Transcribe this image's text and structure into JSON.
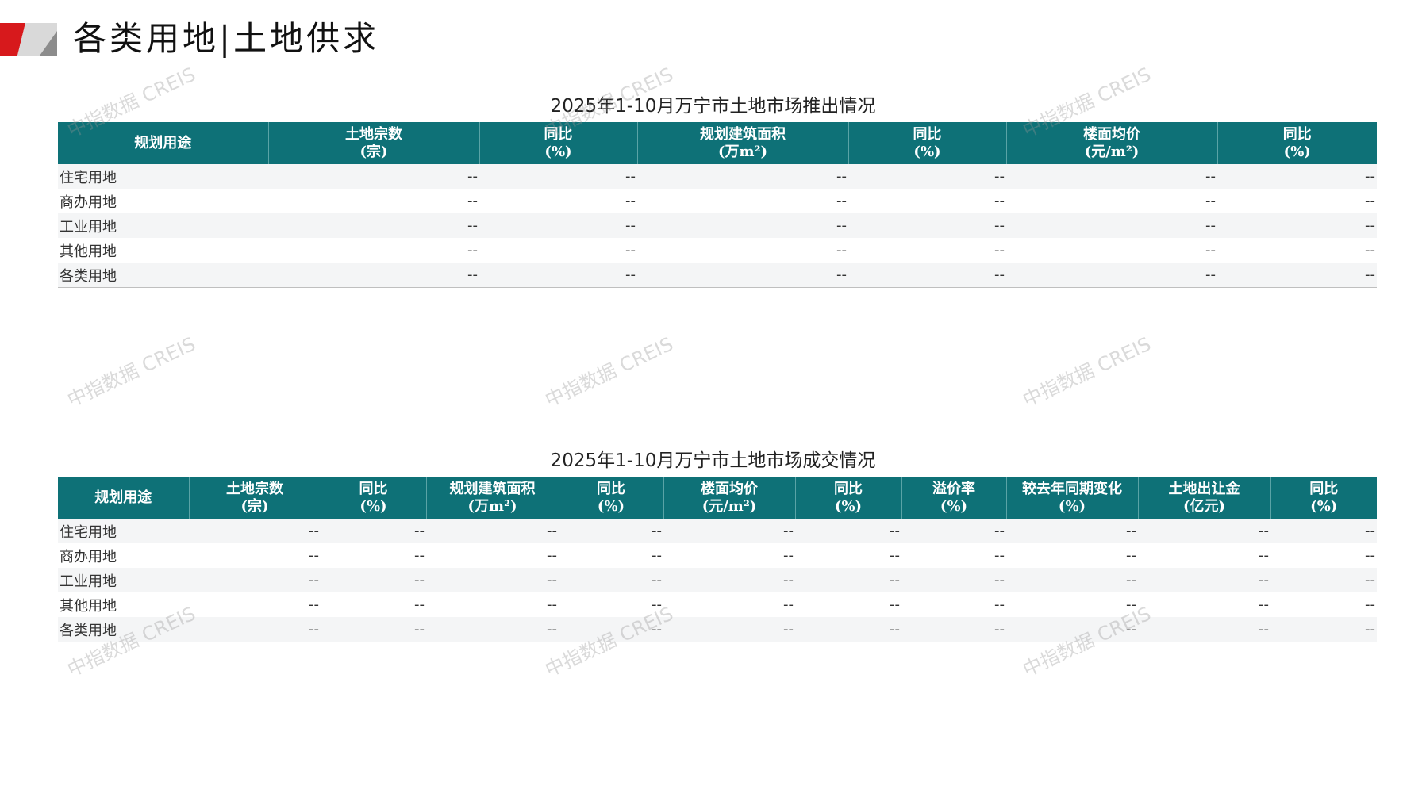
{
  "header": {
    "title": "各类用地|土地供求"
  },
  "watermark": "中指数据 CREIS",
  "colors": {
    "header_bg": "#0e7177",
    "logo_red": "#d7191c",
    "logo_gray": "#a0a0a0"
  },
  "supply_table": {
    "title": "2025年1-10月万宁市土地市场推出情况",
    "columns": [
      [
        "规划用途"
      ],
      [
        "土地宗数",
        "(宗)"
      ],
      [
        "同比",
        "(%)"
      ],
      [
        "规划建筑面积",
        "(万m²)"
      ],
      [
        "同比",
        "(%)"
      ],
      [
        "楼面均价",
        "(元/m²)"
      ],
      [
        "同比",
        "(%)"
      ]
    ],
    "rows": [
      [
        "住宅用地",
        "--",
        "--",
        "--",
        "--",
        "--",
        "--"
      ],
      [
        "商办用地",
        "--",
        "--",
        "--",
        "--",
        "--",
        "--"
      ],
      [
        "工业用地",
        "--",
        "--",
        "--",
        "--",
        "--",
        "--"
      ],
      [
        "其他用地",
        "--",
        "--",
        "--",
        "--",
        "--",
        "--"
      ],
      [
        "各类用地",
        "--",
        "--",
        "--",
        "--",
        "--",
        "--"
      ]
    ]
  },
  "deal_table": {
    "title": "2025年1-10月万宁市土地市场成交情况",
    "columns": [
      [
        "规划用途"
      ],
      [
        "土地宗数",
        "(宗)"
      ],
      [
        "同比",
        "(%)"
      ],
      [
        "规划建筑面积",
        "(万m²)"
      ],
      [
        "同比",
        "(%)"
      ],
      [
        "楼面均价",
        "(元/m²)"
      ],
      [
        "同比",
        "(%)"
      ],
      [
        "溢价率",
        "(%)"
      ],
      [
        "较去年同期变化",
        "(%)"
      ],
      [
        "土地出让金",
        "(亿元)"
      ],
      [
        "同比",
        "(%)"
      ]
    ],
    "rows": [
      [
        "住宅用地",
        "--",
        "--",
        "--",
        "--",
        "--",
        "--",
        "--",
        "--",
        "--",
        "--"
      ],
      [
        "商办用地",
        "--",
        "--",
        "--",
        "--",
        "--",
        "--",
        "--",
        "--",
        "--",
        "--"
      ],
      [
        "工业用地",
        "--",
        "--",
        "--",
        "--",
        "--",
        "--",
        "--",
        "--",
        "--",
        "--"
      ],
      [
        "其他用地",
        "--",
        "--",
        "--",
        "--",
        "--",
        "--",
        "--",
        "--",
        "--",
        "--"
      ],
      [
        "各类用地",
        "--",
        "--",
        "--",
        "--",
        "--",
        "--",
        "--",
        "--",
        "--",
        "--"
      ]
    ]
  }
}
